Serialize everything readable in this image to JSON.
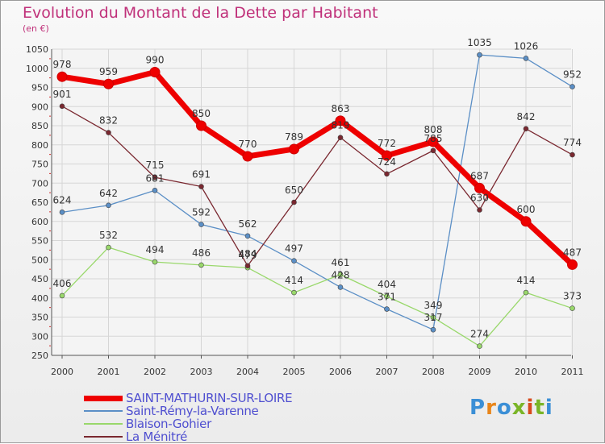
{
  "title": "Evolution du Montant de la Dette par Habitant",
  "subtitle": "(en €)",
  "logo": {
    "text": "Proxiti",
    "colors": [
      "#3b8fd6",
      "#e8851a",
      "#3b8fd6",
      "#7ab527",
      "#d84a1c",
      "#7ab527",
      "#3b8fd6"
    ]
  },
  "chart_data": {
    "type": "line",
    "x": [
      "2000",
      "2001",
      "2002",
      "2003",
      "2004",
      "2005",
      "2006",
      "2007",
      "2008",
      "2009",
      "2010",
      "2011"
    ],
    "ylim": [
      250,
      1050
    ],
    "yticks": [
      250,
      300,
      350,
      400,
      450,
      500,
      550,
      600,
      650,
      700,
      750,
      800,
      850,
      900,
      950,
      1000,
      1050
    ],
    "grid": true,
    "legend_position": "bottom-left",
    "series": [
      {
        "name": "SAINT-MATHURIN-SUR-LOIRE",
        "color": "#ee0000",
        "values": [
          978,
          959,
          990,
          850,
          770,
          789,
          863,
          772,
          808,
          687,
          600,
          487
        ]
      },
      {
        "name": "Saint-Rémy-la-Varenne",
        "color": "#5b8fc6",
        "values": [
          624,
          642,
          681,
          592,
          562,
          497,
          428,
          371,
          317,
          1035,
          1026,
          952
        ]
      },
      {
        "name": "Blaison-Gohier",
        "color": "#99d86b",
        "values": [
          406,
          532,
          494,
          486,
          479,
          414,
          461,
          404,
          349,
          274,
          414,
          373
        ]
      },
      {
        "name": "La Ménitré",
        "color": "#7a2830",
        "values": [
          901,
          832,
          715,
          691,
          484,
          650,
          819,
          724,
          785,
          630,
          842,
          774
        ]
      }
    ]
  }
}
